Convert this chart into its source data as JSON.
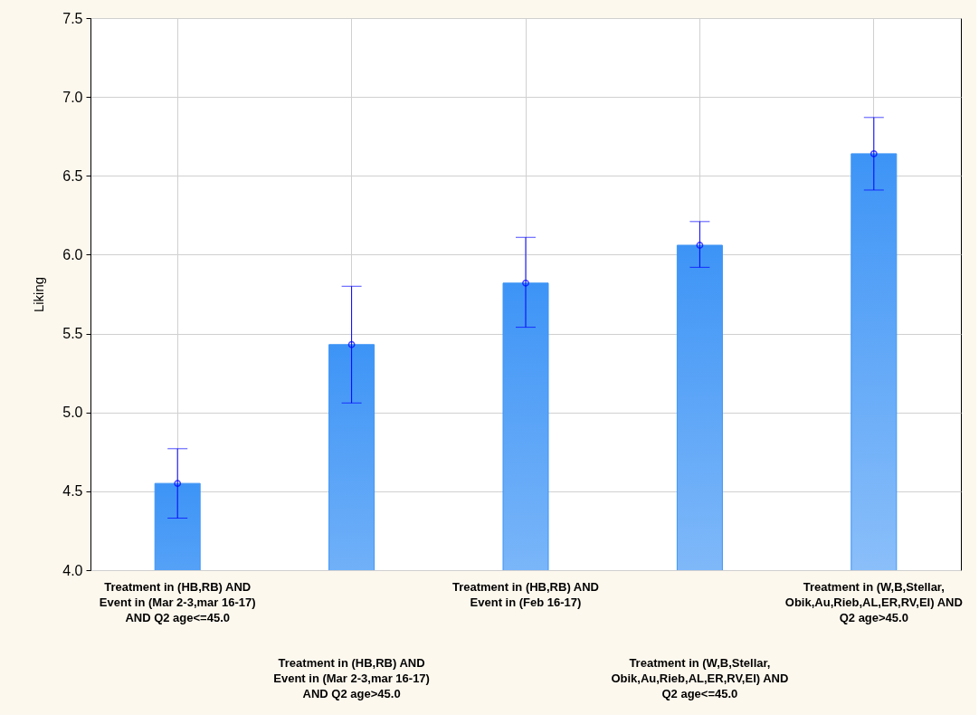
{
  "chart_data": {
    "type": "bar",
    "ylabel": "Liking",
    "categories": [
      "Treatment in (HB,RB) AND\nEvent in (Mar 2-3,mar 16-17)\nAND Q2 age<=45.0",
      "Treatment in (HB,RB) AND\nEvent in (Mar 2-3,mar 16-17)\nAND Q2 age>45.0",
      "Treatment in (HB,RB) AND\nEvent in (Feb 16-17)",
      "Treatment in (W,B,Stellar,\nObik,Au,Rieb,AL,ER,RV,EI) AND\nQ2 age<=45.0",
      "Treatment in (W,B,Stellar,\nObik,Au,Rieb,AL,ER,RV,EI) AND\nQ2 age>45.0"
    ],
    "series": [
      {
        "color": "#3d94f6",
        "values": [
          4.55,
          5.43,
          5.82,
          6.06,
          6.64
        ],
        "errors": [
          [
            4.33,
            4.77
          ],
          [
            5.06,
            5.8
          ],
          [
            5.54,
            6.11
          ],
          [
            5.92,
            6.21
          ],
          [
            6.41,
            6.87
          ]
        ]
      },
      {
        "type": "scatter",
        "color": "#0000ff",
        "marker": "circle",
        "x": [
          "Treatment in (HB,RB) AND\nEvent in (Mar 2-3,mar 16-17)\nAND Q2 age<=45.0",
          "Treatment in (HB,RB) AND\nEvent in (Mar 2-3,mar 16-17)\nAND Q2 age>45.0",
          "Treatment in (HB,RB) AND\nEvent in (Feb 16-17)",
          "Treatment in (W,B,Stellar,\nObik,Au,Rieb,AL,ER,RV,EI) AND\nQ2 age<=45.0",
          "Treatment in (W,B,Stellar,\nObik,Au,Rieb,AL,ER,RV,EI) AND\nQ2 age>45.0"
        ],
        "values": [
          4.55,
          5.43,
          5.82,
          6.06,
          6.64
        ]
      }
    ],
    "ylim": [
      4.0,
      7.5
    ],
    "yticks": [
      {
        "value": 4.0,
        "label": "4.0"
      },
      {
        "value": 4.5,
        "label": "4.5"
      },
      {
        "value": 5.0,
        "label": "5.0"
      },
      {
        "value": 5.5,
        "label": "5.5"
      },
      {
        "value": 6.0,
        "label": "6.0"
      },
      {
        "value": 6.5,
        "label": "6.5"
      },
      {
        "value": 7.0,
        "label": "7.0"
      },
      {
        "value": 7.5,
        "label": "7.5"
      }
    ],
    "grid": true
  }
}
